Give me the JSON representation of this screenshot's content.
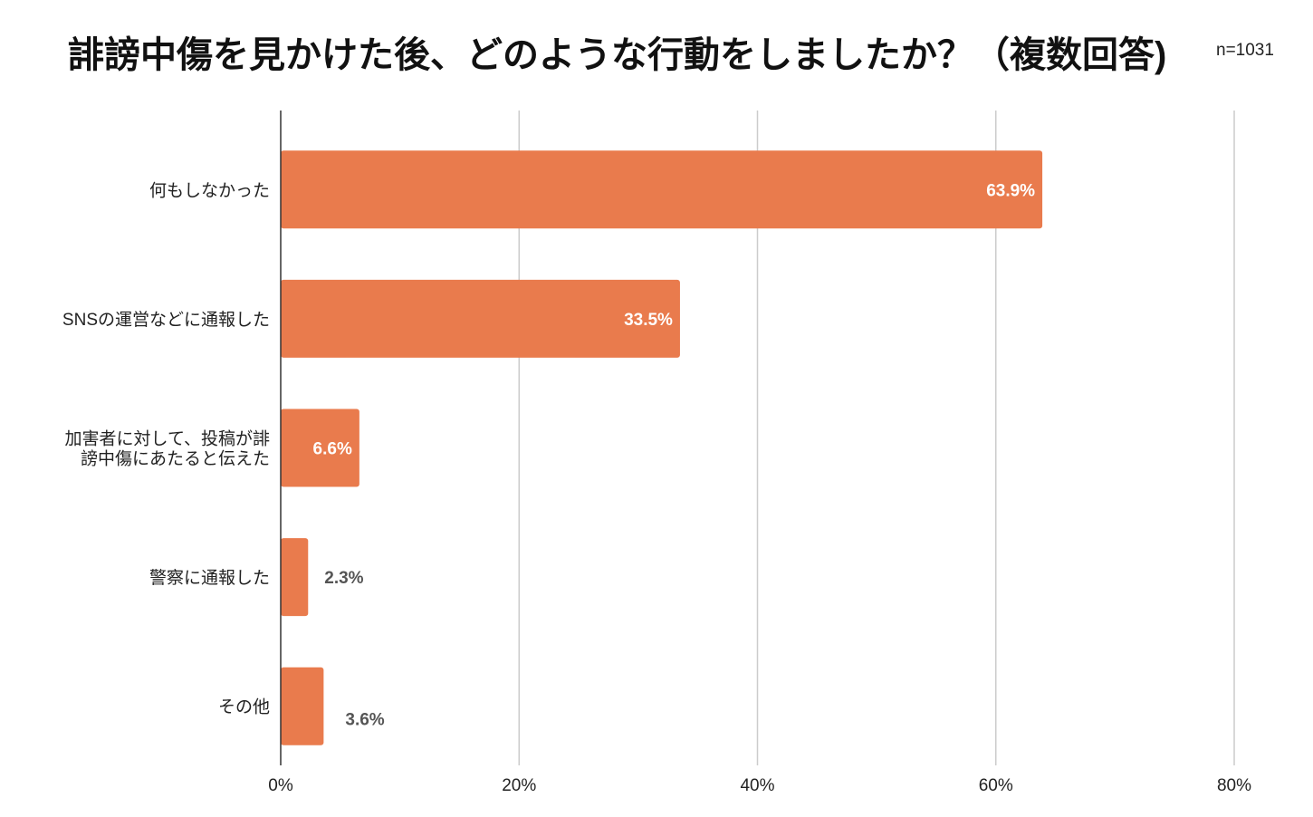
{
  "chart_data": {
    "type": "bar",
    "orientation": "horizontal",
    "title": "誹謗中傷を見かけた後、どのような行動をしましたか？（複数回答)",
    "subtitle": "n=1031",
    "categories": [
      [
        "何もしなかった"
      ],
      [
        "SNSの運営などに通報した"
      ],
      [
        "加害者に対して、投稿が誹",
        "謗中傷にあたると伝えた"
      ],
      [
        "警察に通報した"
      ],
      [
        "その他"
      ]
    ],
    "values": [
      63.9,
      33.5,
      6.6,
      2.3,
      3.6
    ],
    "data_labels": [
      "63.9%",
      "33.5%",
      "6.6%",
      "2.3%",
      "3.6%"
    ],
    "xlim": [
      0,
      80
    ],
    "xticks": [
      0,
      20,
      40,
      60,
      80
    ],
    "xtick_labels": [
      "0%",
      "20%",
      "40%",
      "60%",
      "80%"
    ],
    "grid": true,
    "bar_color": "#E97B4D",
    "xlabel": "",
    "ylabel": ""
  }
}
